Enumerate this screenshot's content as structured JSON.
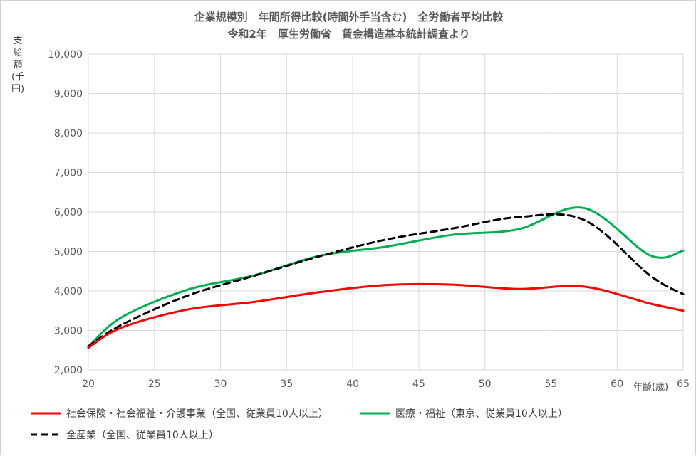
{
  "chart_data": {
    "type": "line",
    "title": "企業規模別　年間所得比較(時間外手当含む)　全労働者平均比較",
    "subtitle": "令和2年　厚生労働省　賃金構造基本統計調査より",
    "ylabel": "支給額(千円)",
    "xlabel": "年齢(歳)",
    "xlim": [
      20,
      65
    ],
    "ylim": [
      2000,
      10000
    ],
    "x_ticks": [
      "20",
      "25",
      "30",
      "35",
      "40",
      "45",
      "50",
      "55",
      "60",
      "65"
    ],
    "y_ticks": [
      "2,000",
      "3,000",
      "4,000",
      "5,000",
      "6,000",
      "7,000",
      "8,000",
      "9,000",
      "10,000"
    ],
    "grid": true,
    "legend_position": "bottom",
    "series": [
      {
        "name": "社会保険・社会福祉・介護事業（全国、従業員10人以上）",
        "color": "#ff0000",
        "style": "solid",
        "x": [
          20,
          22.5,
          27.5,
          32.5,
          37.5,
          42.5,
          47.5,
          52.5,
          57.5,
          62.5,
          65
        ],
        "values": [
          2560,
          3070,
          3530,
          3720,
          3970,
          4150,
          4160,
          4050,
          4110,
          3680,
          3500
        ]
      },
      {
        "name": "医療・福祉（東京、従業員10人以上）",
        "color": "#00b050",
        "style": "solid",
        "x": [
          20,
          22.5,
          27.5,
          32.5,
          37.5,
          42.5,
          47.5,
          52.5,
          57.5,
          62.5,
          65
        ],
        "values": [
          2580,
          3330,
          4030,
          4390,
          4890,
          5120,
          5420,
          5560,
          6100,
          4900,
          5020
        ]
      },
      {
        "name": "全産業（全国、従業員10人以上）",
        "color": "#000000",
        "style": "dashed",
        "x": [
          20,
          22.5,
          27.5,
          32.5,
          37.5,
          42.5,
          47.5,
          52.5,
          57.5,
          62.5,
          65
        ],
        "values": [
          2600,
          3140,
          3880,
          4380,
          4880,
          5300,
          5580,
          5870,
          5800,
          4390,
          3920
        ]
      }
    ]
  }
}
